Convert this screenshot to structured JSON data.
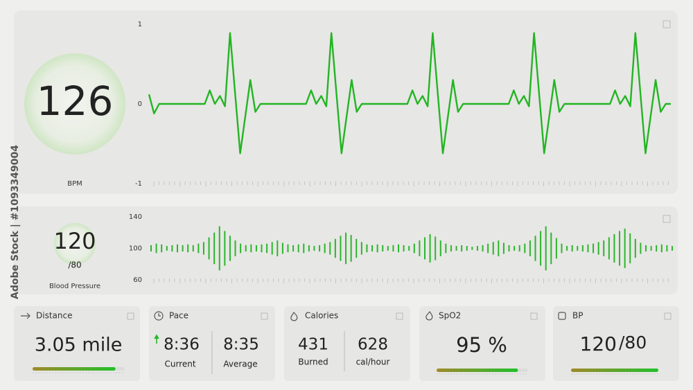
{
  "heart_rate": {
    "value": "126",
    "unit": "BPM",
    "chart": {
      "type": "line",
      "color": "#22b522",
      "ylim": [
        -1,
        1
      ],
      "yticks": [
        1,
        0,
        -1
      ],
      "values": [
        0.12,
        -0.12,
        0,
        0,
        0,
        0,
        0,
        0,
        0,
        0,
        0,
        0,
        0.17,
        0,
        0.1,
        -0.03,
        0.89,
        0.13,
        -0.62,
        -0.16,
        0.3,
        -0.1,
        0,
        0,
        0,
        0,
        0,
        0,
        0,
        0,
        0,
        0,
        0.17,
        0,
        0.1,
        -0.03,
        0.89,
        0.13,
        -0.62,
        -0.16,
        0.3,
        -0.1,
        0,
        0,
        0,
        0,
        0,
        0,
        0,
        0,
        0,
        0,
        0.17,
        0,
        0.1,
        -0.03,
        0.89,
        0.13,
        -0.62,
        -0.16,
        0.3,
        -0.1,
        0,
        0,
        0,
        0,
        0,
        0,
        0,
        0,
        0,
        0,
        0.17,
        0,
        0.1,
        -0.03,
        0.89,
        0.13,
        -0.62,
        -0.16,
        0.3,
        -0.1,
        0,
        0,
        0,
        0,
        0,
        0,
        0,
        0,
        0,
        0,
        0.17,
        0,
        0.1,
        -0.03,
        0.89,
        0.13,
        -0.62,
        -0.16,
        0.3,
        -0.1,
        0,
        0
      ]
    }
  },
  "blood_pressure": {
    "value": "120",
    "sub": "/80",
    "label": "Blood Pressure",
    "chart": {
      "type": "bar",
      "color": "#2bb52b",
      "ylim": [
        60,
        140
      ],
      "yticks": [
        140,
        100,
        60
      ],
      "values": [
        104,
        106,
        105,
        103,
        104,
        105,
        104,
        105,
        104,
        106,
        108,
        114,
        120,
        128,
        122,
        116,
        110,
        106,
        104,
        105,
        104,
        105,
        106,
        108,
        110,
        107,
        105,
        104,
        105,
        106,
        104,
        103,
        104,
        106,
        108,
        112,
        116,
        120,
        117,
        112,
        108,
        105,
        104,
        105,
        104,
        103,
        104,
        105,
        104,
        103,
        106,
        110,
        114,
        118,
        115,
        110,
        106,
        104,
        103,
        104,
        103,
        102,
        103,
        104,
        106,
        108,
        110,
        107,
        104,
        103,
        104,
        106,
        110,
        116,
        122,
        128,
        120,
        113,
        106,
        103,
        104,
        103,
        104,
        105,
        106,
        108,
        110,
        114,
        118,
        122,
        125,
        119,
        112,
        107,
        104,
        103,
        104,
        105,
        104,
        103
      ]
    }
  },
  "cards": {
    "distance": {
      "title": "Distance",
      "value": "3.05 mile",
      "progress": 90
    },
    "pace": {
      "title": "Pace",
      "current": "8:36",
      "current_label": "Current",
      "average": "8:35",
      "average_label": "Average"
    },
    "calories": {
      "title": "Calories",
      "burned": "431",
      "burned_label": "Burned",
      "rate": "628",
      "rate_label": "cal/hour"
    },
    "spo2": {
      "title": "SpO2",
      "value": "95 %",
      "progress": 89
    },
    "bp": {
      "title": "BP",
      "value": "120",
      "sub": "/80",
      "progress": 100
    }
  },
  "watermark": "Adobe Stock | #1093349004"
}
